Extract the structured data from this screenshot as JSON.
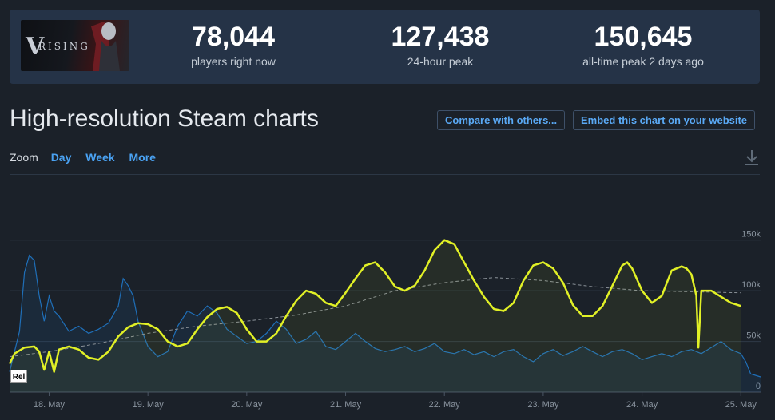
{
  "game": {
    "logo_letter": "V",
    "logo_text": "RISING"
  },
  "stats": [
    {
      "value": "78,044",
      "label": "players right now"
    },
    {
      "value": "127,438",
      "label": "24-hour peak"
    },
    {
      "value": "150,645",
      "label": "all-time peak 2 days ago"
    }
  ],
  "title": "High-resolution Steam charts",
  "buttons": {
    "compare": "Compare with others...",
    "embed": "Embed this chart on your website"
  },
  "zoom": {
    "label": "Zoom",
    "options": [
      "Day",
      "Week",
      "More"
    ]
  },
  "rel_label": "Rel",
  "colors": {
    "players": "#1f6fb8",
    "trend": "#e1f026",
    "average": "#8a9198",
    "background": "#1b2129"
  },
  "chart_data": {
    "type": "line",
    "x_ticks": [
      "18. May",
      "19. May",
      "20. May",
      "21. May",
      "22. May",
      "23. May",
      "24. May",
      "25. May"
    ],
    "y_ticks": [
      "0",
      "50k",
      "100k",
      "150k"
    ],
    "ylim": [
      0,
      160000
    ],
    "x_range": [
      17.6,
      25.2
    ],
    "grid": true,
    "series": [
      {
        "style": "blue-players",
        "points": [
          [
            17.6,
            20000
          ],
          [
            17.7,
            60000
          ],
          [
            17.75,
            118000
          ],
          [
            17.8,
            135000
          ],
          [
            17.85,
            130000
          ],
          [
            17.9,
            95000
          ],
          [
            17.95,
            70000
          ],
          [
            18.0,
            95000
          ],
          [
            18.05,
            80000
          ],
          [
            18.1,
            75000
          ],
          [
            18.2,
            60000
          ],
          [
            18.3,
            65000
          ],
          [
            18.4,
            58000
          ],
          [
            18.5,
            62000
          ],
          [
            18.6,
            68000
          ],
          [
            18.7,
            85000
          ],
          [
            18.75,
            112000
          ],
          [
            18.8,
            105000
          ],
          [
            18.85,
            95000
          ],
          [
            18.9,
            70000
          ],
          [
            19.0,
            45000
          ],
          [
            19.1,
            35000
          ],
          [
            19.2,
            40000
          ],
          [
            19.3,
            65000
          ],
          [
            19.4,
            80000
          ],
          [
            19.5,
            75000
          ],
          [
            19.6,
            85000
          ],
          [
            19.7,
            78000
          ],
          [
            19.8,
            62000
          ],
          [
            19.9,
            55000
          ],
          [
            20.0,
            48000
          ],
          [
            20.1,
            50000
          ],
          [
            20.2,
            58000
          ],
          [
            20.3,
            70000
          ],
          [
            20.4,
            62000
          ],
          [
            20.5,
            48000
          ],
          [
            20.6,
            52000
          ],
          [
            20.7,
            60000
          ],
          [
            20.8,
            45000
          ],
          [
            20.9,
            42000
          ],
          [
            21.0,
            50000
          ],
          [
            21.1,
            58000
          ],
          [
            21.2,
            50000
          ],
          [
            21.3,
            43000
          ],
          [
            21.4,
            40000
          ],
          [
            21.5,
            42000
          ],
          [
            21.6,
            45000
          ],
          [
            21.7,
            40000
          ],
          [
            21.8,
            43000
          ],
          [
            21.9,
            48000
          ],
          [
            22.0,
            40000
          ],
          [
            22.1,
            38000
          ],
          [
            22.2,
            42000
          ],
          [
            22.3,
            37000
          ],
          [
            22.4,
            40000
          ],
          [
            22.5,
            35000
          ],
          [
            22.6,
            40000
          ],
          [
            22.7,
            42000
          ],
          [
            22.8,
            35000
          ],
          [
            22.9,
            30000
          ],
          [
            23.0,
            38000
          ],
          [
            23.1,
            42000
          ],
          [
            23.2,
            36000
          ],
          [
            23.3,
            40000
          ],
          [
            23.4,
            45000
          ],
          [
            23.5,
            40000
          ],
          [
            23.6,
            35000
          ],
          [
            23.7,
            40000
          ],
          [
            23.8,
            42000
          ],
          [
            23.9,
            38000
          ],
          [
            24.0,
            32000
          ],
          [
            24.1,
            35000
          ],
          [
            24.2,
            38000
          ],
          [
            24.3,
            35000
          ],
          [
            24.4,
            40000
          ],
          [
            24.5,
            42000
          ],
          [
            24.6,
            38000
          ],
          [
            24.7,
            44000
          ],
          [
            24.8,
            50000
          ],
          [
            24.9,
            42000
          ],
          [
            25.0,
            38000
          ],
          [
            25.05,
            30000
          ],
          [
            25.1,
            18000
          ],
          [
            25.2,
            15000
          ]
        ]
      },
      {
        "style": "yellow-trend",
        "points": [
          [
            17.6,
            28000
          ],
          [
            17.65,
            38000
          ],
          [
            17.75,
            44000
          ],
          [
            17.85,
            45000
          ],
          [
            17.9,
            40000
          ],
          [
            17.95,
            22000
          ],
          [
            18.0,
            40000
          ],
          [
            18.05,
            20000
          ],
          [
            18.1,
            42000
          ],
          [
            18.2,
            45000
          ],
          [
            18.3,
            42000
          ],
          [
            18.4,
            34000
          ],
          [
            18.5,
            32000
          ],
          [
            18.6,
            40000
          ],
          [
            18.7,
            55000
          ],
          [
            18.8,
            64000
          ],
          [
            18.9,
            68000
          ],
          [
            19.0,
            67000
          ],
          [
            19.1,
            62000
          ],
          [
            19.2,
            50000
          ],
          [
            19.3,
            45000
          ],
          [
            19.4,
            48000
          ],
          [
            19.5,
            62000
          ],
          [
            19.6,
            74000
          ],
          [
            19.7,
            82000
          ],
          [
            19.8,
            84000
          ],
          [
            19.9,
            78000
          ],
          [
            20.0,
            62000
          ],
          [
            20.1,
            50000
          ],
          [
            20.2,
            50000
          ],
          [
            20.3,
            58000
          ],
          [
            20.4,
            75000
          ],
          [
            20.5,
            90000
          ],
          [
            20.6,
            100000
          ],
          [
            20.7,
            97000
          ],
          [
            20.8,
            88000
          ],
          [
            20.9,
            85000
          ],
          [
            21.0,
            98000
          ],
          [
            21.1,
            112000
          ],
          [
            21.2,
            125000
          ],
          [
            21.3,
            128000
          ],
          [
            21.4,
            118000
          ],
          [
            21.5,
            104000
          ],
          [
            21.6,
            100000
          ],
          [
            21.7,
            105000
          ],
          [
            21.8,
            120000
          ],
          [
            21.9,
            140000
          ],
          [
            22.0,
            150000
          ],
          [
            22.1,
            146000
          ],
          [
            22.2,
            128000
          ],
          [
            22.3,
            110000
          ],
          [
            22.4,
            94000
          ],
          [
            22.5,
            82000
          ],
          [
            22.6,
            80000
          ],
          [
            22.7,
            88000
          ],
          [
            22.8,
            110000
          ],
          [
            22.9,
            125000
          ],
          [
            23.0,
            128000
          ],
          [
            23.1,
            122000
          ],
          [
            23.2,
            108000
          ],
          [
            23.3,
            86000
          ],
          [
            23.4,
            75000
          ],
          [
            23.5,
            75000
          ],
          [
            23.6,
            85000
          ],
          [
            23.7,
            105000
          ],
          [
            23.8,
            125000
          ],
          [
            23.85,
            128000
          ],
          [
            23.9,
            122000
          ],
          [
            24.0,
            100000
          ],
          [
            24.1,
            88000
          ],
          [
            24.2,
            95000
          ],
          [
            24.3,
            120000
          ],
          [
            24.4,
            124000
          ],
          [
            24.45,
            122000
          ],
          [
            24.5,
            116000
          ],
          [
            24.55,
            95000
          ],
          [
            24.57,
            44000
          ],
          [
            24.6,
            100000
          ],
          [
            24.7,
            100000
          ],
          [
            24.8,
            94000
          ],
          [
            24.9,
            88000
          ],
          [
            25.0,
            85000
          ]
        ]
      },
      {
        "style": "grey-average",
        "points": [
          [
            17.6,
            35000
          ],
          [
            18.0,
            40000
          ],
          [
            18.5,
            48000
          ],
          [
            19.0,
            58000
          ],
          [
            19.5,
            65000
          ],
          [
            20.0,
            70000
          ],
          [
            20.5,
            76000
          ],
          [
            21.0,
            85000
          ],
          [
            21.5,
            100000
          ],
          [
            22.0,
            108000
          ],
          [
            22.5,
            113000
          ],
          [
            23.0,
            110000
          ],
          [
            23.5,
            104000
          ],
          [
            24.0,
            100000
          ],
          [
            24.5,
            99000
          ],
          [
            25.0,
            98000
          ]
        ]
      }
    ]
  }
}
